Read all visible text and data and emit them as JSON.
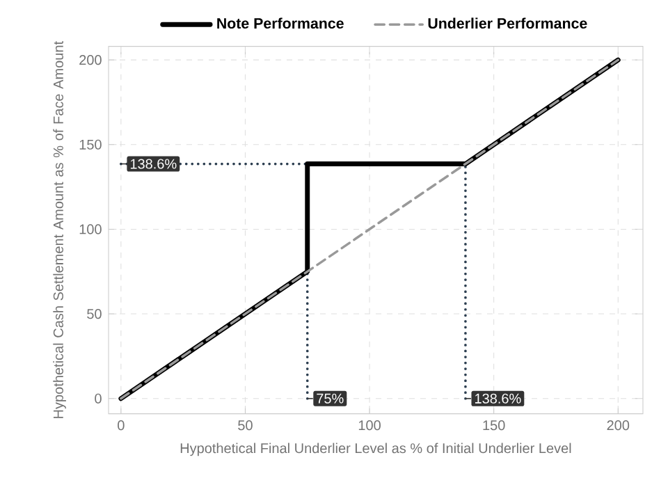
{
  "chart_data": {
    "type": "line",
    "xlabel": "Hypothetical Final Underlier Level as % of Initial Underlier Level",
    "ylabel": "Hypothetical Cash Settlement Amount as % of Face Amount",
    "xlim": [
      -5,
      210
    ],
    "ylim": [
      -9,
      208
    ],
    "xticks": [
      0,
      50,
      100,
      150,
      200
    ],
    "yticks": [
      0,
      50,
      100,
      150,
      200
    ],
    "grid": true,
    "legend": "top",
    "series": [
      {
        "name": "Note Performance",
        "color": "#000000",
        "line_style": "solid",
        "x": [
          0,
          75,
          75,
          138.6,
          200
        ],
        "values": [
          0,
          75,
          138.6,
          138.6,
          200
        ]
      },
      {
        "name": "Underlier Performance",
        "color": "#999999",
        "line_style": "dashed",
        "x": [
          0,
          200
        ],
        "values": [
          0,
          200
        ]
      },
      {
        "color": "#2c3e50",
        "line_style": "dotted",
        "x": [
          0,
          75
        ],
        "values": [
          138.6,
          138.6
        ]
      },
      {
        "color": "#2c3e50",
        "line_style": "dotted",
        "x": [
          75,
          75
        ],
        "values": [
          0,
          75
        ]
      },
      {
        "color": "#2c3e50",
        "line_style": "dotted",
        "x": [
          138.6,
          138.6
        ],
        "values": [
          0,
          138.6
        ]
      }
    ],
    "annotations": [
      {
        "text": "138.6%",
        "x": 0,
        "y": 138.6
      },
      {
        "text": "75%",
        "x": 75,
        "y": 0
      },
      {
        "text": "138.6%",
        "x": 138.6,
        "y": 0
      }
    ]
  }
}
